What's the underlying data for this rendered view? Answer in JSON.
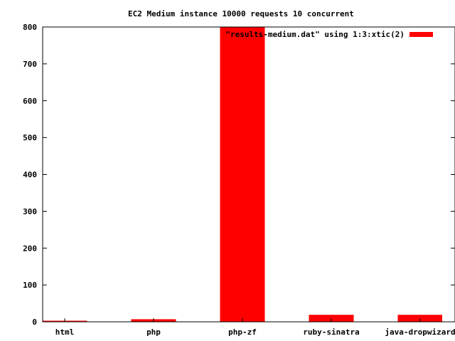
{
  "chart_data": {
    "type": "bar",
    "title": "EC2 Medium instance 10000 requests 10 concurrent",
    "xlabel": "",
    "ylabel": "",
    "categories": [
      "html",
      "php",
      "php-zf",
      "ruby-sinatra",
      "java-dropwizard"
    ],
    "series": [
      {
        "name": "\"results-medium.dat\" using 1:3:xtic(2)",
        "values": [
          3,
          7,
          800,
          19,
          19
        ],
        "color": "#ff0000"
      }
    ],
    "ylim": [
      0,
      800
    ],
    "yticks": [
      0,
      100,
      200,
      300,
      400,
      500,
      600,
      700,
      800
    ],
    "grid": false,
    "legend_position": "top-right"
  }
}
